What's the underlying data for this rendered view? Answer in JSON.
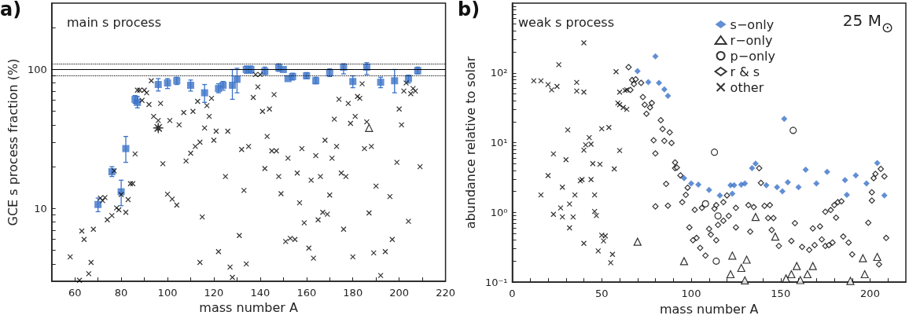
{
  "chart_data": [
    {
      "type": "scatter",
      "xlabel": "mass number A",
      "ylabel": "GCE s process fraction (%)",
      "annotations": [
        "a)",
        "main s process"
      ],
      "xlim": [
        50,
        220
      ],
      "xticks": [
        {
          "value": 50,
          "label": null
        },
        60,
        {
          "value": 70,
          "label": null
        },
        80,
        {
          "value": 90,
          "label": null
        },
        100,
        {
          "value": 110,
          "label": null
        },
        120,
        {
          "value": 130,
          "label": null
        },
        140,
        {
          "value": 150,
          "label": null
        },
        160,
        {
          "value": 170,
          "label": null
        },
        180,
        {
          "value": 190,
          "label": null
        },
        200,
        {
          "value": 210,
          "label": null
        },
        220
      ],
      "ylim": [
        3,
        300
      ],
      "yticks": [
        {
          "value": 4,
          "label": null
        },
        {
          "value": 5,
          "label": null
        },
        {
          "value": 6,
          "label": null
        },
        {
          "value": 7,
          "label": null
        },
        {
          "value": 8,
          "label": null
        },
        {
          "value": 9,
          "label": null
        },
        10,
        {
          "value": 20,
          "label": null
        },
        {
          "value": 30,
          "label": null
        },
        {
          "value": 40,
          "label": null
        },
        {
          "value": 50,
          "label": null
        },
        {
          "value": 60,
          "label": null
        },
        {
          "value": 70,
          "label": null
        },
        {
          "value": 80,
          "label": null
        },
        {
          "value": 90,
          "label": null
        },
        100,
        {
          "value": 200,
          "label": null
        }
      ],
      "log": "y",
      "grid": false,
      "legend": false,
      "ref_lines": [
        {
          "axis": "y",
          "value": 100,
          "color": "#000000",
          "line_style": "solid"
        },
        {
          "axis": "y",
          "value": 110,
          "color": "#000000",
          "line_style": "dotted"
        },
        {
          "axis": "y",
          "value": 90,
          "color": "#000000",
          "line_style": "dotted"
        }
      ],
      "series": [
        {
          "color": "#3b73c8",
          "marker": "square",
          "x": [
            70,
            76,
            80,
            82,
            86,
            87,
            96,
            100,
            104,
            110,
            116,
            122,
            124,
            128,
            130,
            134,
            136,
            142,
            148,
            150,
            152,
            154,
            160,
            164,
            170,
            176,
            180,
            186,
            192,
            198,
            204,
            208
          ],
          "values": [
            10.7,
            18.4,
            13.2,
            27,
            61,
            58,
            78,
            80,
            83,
            77,
            68,
            73,
            77,
            77,
            85,
            100,
            100,
            97,
            103,
            100,
            86,
            89,
            90,
            83,
            95,
            104,
            82,
            104,
            81,
            83,
            86,
            98
          ],
          "errors": [
            [
              9.5,
              11.9
            ],
            [
              17,
              20
            ],
            [
              10.5,
              16
            ],
            [
              21.5,
              33
            ],
            [
              57,
              65
            ],
            [
              53,
              64
            ],
            [
              70,
              86
            ],
            [
              73,
              86
            ],
            [
              78,
              88
            ],
            [
              70,
              84
            ],
            [
              58,
              78
            ],
            [
              68,
              79
            ],
            [
              71,
              82
            ],
            [
              61,
              100
            ],
            [
              68,
              102
            ],
            [
              94,
              106
            ],
            [
              94,
              106
            ],
            [
              92,
              104
            ],
            [
              97,
              110
            ],
            null,
            null,
            [
              84,
              94
            ],
            [
              86,
              95
            ],
            [
              79,
              88
            ],
            [
              89,
              101
            ],
            [
              93,
              110
            ],
            [
              74,
              90
            ],
            [
              92,
              112
            ],
            [
              74,
              88
            ],
            [
              68,
              100
            ],
            [
              80,
              91
            ],
            [
              93,
              104
            ]
          ]
        },
        {
          "color": "#000000",
          "marker": "cross",
          "x": [
            58,
            62,
            63,
            64,
            66,
            67,
            68,
            71,
            72,
            73,
            74,
            76,
            77,
            78,
            79,
            80,
            82,
            83,
            84,
            85,
            86,
            87,
            88,
            89,
            90,
            91,
            92,
            93,
            94,
            96,
            97,
            98,
            100,
            101,
            102,
            104,
            105,
            107,
            108,
            110,
            111,
            112,
            113,
            114,
            114,
            115,
            116,
            117,
            118,
            119,
            120,
            121,
            122,
            125,
            126,
            127,
            128,
            131,
            132,
            133,
            134,
            135,
            137,
            138,
            140,
            139,
            141,
            142,
            143,
            144,
            145,
            146,
            147,
            148,
            149,
            151,
            153,
            152,
            155,
            156,
            157,
            158,
            159,
            161,
            162,
            163,
            164,
            165,
            166,
            167,
            168,
            169,
            170,
            171,
            172,
            173,
            174,
            175,
            176,
            177,
            178,
            179,
            180,
            181,
            182,
            183,
            184,
            185,
            186,
            187,
            188,
            189,
            190,
            192,
            194,
            196,
            197,
            199,
            200,
            201,
            202,
            203,
            204,
            205,
            206,
            207,
            209
          ],
          "values": [
            4.5,
            3.05,
            6.9,
            6.0,
            3.4,
            4.1,
            7.1,
            11.9,
            11.4,
            12,
            8.3,
            8.9,
            18.7,
            10.1,
            9.8,
            12.6,
            9.4,
            11.6,
            15.1,
            15.1,
            24.7,
            71,
            71,
            60,
            71,
            68,
            56,
            83,
            46,
            43,
            57,
            21,
            12.7,
            43,
            11.7,
            10.6,
            40,
            49,
            22,
            25,
            50,
            28,
            59,
            30,
            4.1,
            8.7,
            38,
            55,
            46,
            62,
            31,
            36,
            4.9,
            17,
            36,
            3.8,
            3.2,
            6.4,
            26.6,
            13.5,
            4.0,
            28,
            63,
            92,
            92,
            75,
            50,
            19.4,
            33,
            52,
            26,
            66,
            26,
            17,
            12.8,
            5.8,
            6.1,
            23,
            6.0,
            18,
            11,
            27,
            7.9,
            5.2,
            16,
            4.4,
            24,
            8.3,
            17,
            9.4,
            31,
            9.1,
            12.5,
            23,
            44,
            28,
            61,
            18,
            7.1,
            17,
            57,
            41,
            4.5,
            46,
            64,
            62,
            79,
            27,
            42,
            9.3,
            28,
            4.8,
            14.5,
            3.3,
            4.9,
            12.2,
            6.0,
            21.5,
            52,
            40,
            70,
            80,
            8.1,
            67,
            73,
            70,
            20
          ]
        },
        {
          "color": "#000000",
          "marker": "star",
          "x": [
            96
          ],
          "values": [
            38
          ]
        },
        {
          "color": "#000000",
          "marker": "triangle",
          "x": [
            187
          ],
          "values": [
            38
          ]
        }
      ]
    },
    {
      "type": "scatter",
      "xlabel": "mass number A",
      "ylabel": "abundance relative to solar",
      "annotations": [
        "b)",
        "weak s process",
        "25 M$_{⊙}$"
      ],
      "xlim": [
        0,
        220
      ],
      "xticks": [
        0,
        {
          "value": 10,
          "label": null
        },
        {
          "value": 20,
          "label": null
        },
        {
          "value": 30,
          "label": null
        },
        {
          "value": 40,
          "label": null
        },
        50,
        {
          "value": 60,
          "label": null
        },
        {
          "value": 70,
          "label": null
        },
        {
          "value": 80,
          "label": null
        },
        {
          "value": 90,
          "label": null
        },
        100,
        {
          "value": 110,
          "label": null
        },
        {
          "value": 120,
          "label": null
        },
        {
          "value": 130,
          "label": null
        },
        {
          "value": 140,
          "label": null
        },
        150,
        {
          "value": 160,
          "label": null
        },
        {
          "value": 170,
          "label": null
        },
        {
          "value": 180,
          "label": null
        },
        {
          "value": 190,
          "label": null
        },
        200,
        {
          "value": 210,
          "label": null
        }
      ],
      "ylim": [
        0.1,
        1000
      ],
      "yticks": [
        {
          "value": 0.1,
          "label": "10⁻¹"
        },
        {
          "value": 0.2,
          "label": null
        },
        {
          "value": 0.3,
          "label": null
        },
        {
          "value": 0.4,
          "label": null
        },
        {
          "value": 0.5,
          "label": null
        },
        {
          "value": 0.6,
          "label": null
        },
        {
          "value": 0.7,
          "label": null
        },
        {
          "value": 0.8,
          "label": null
        },
        {
          "value": 0.9,
          "label": null
        },
        {
          "value": 1,
          "label": "10⁰"
        },
        {
          "value": 2,
          "label": null
        },
        {
          "value": 3,
          "label": null
        },
        {
          "value": 4,
          "label": null
        },
        {
          "value": 5,
          "label": null
        },
        {
          "value": 6,
          "label": null
        },
        {
          "value": 7,
          "label": null
        },
        {
          "value": 8,
          "label": null
        },
        {
          "value": 9,
          "label": null
        },
        {
          "value": 10,
          "label": "10¹"
        },
        {
          "value": 20,
          "label": null
        },
        {
          "value": 30,
          "label": null
        },
        {
          "value": 40,
          "label": null
        },
        {
          "value": 50,
          "label": null
        },
        {
          "value": 60,
          "label": null
        },
        {
          "value": 70,
          "label": null
        },
        {
          "value": 80,
          "label": null
        },
        {
          "value": 90,
          "label": null
        },
        {
          "value": 100,
          "label": "10²"
        },
        {
          "value": 200,
          "label": null
        },
        {
          "value": 300,
          "label": null
        },
        {
          "value": 400,
          "label": null
        },
        {
          "value": 500,
          "label": null
        },
        {
          "value": 600,
          "label": null
        },
        {
          "value": 700,
          "label": null
        },
        {
          "value": 800,
          "label": null
        },
        {
          "value": 900,
          "label": null
        }
      ],
      "log": "y",
      "grid": false,
      "legend": "top right",
      "series": [
        {
          "name": "s−only",
          "color": "#3b73c8",
          "marker": "diamond",
          "x": [
            70,
            76,
            80,
            82,
            85,
            87,
            96,
            100,
            104,
            110,
            116,
            122,
            123,
            124,
            128,
            130,
            134,
            136,
            142,
            148,
            151,
            152,
            154,
            160,
            164,
            170,
            176,
            186,
            187,
            192,
            198,
            204,
            208
          ],
          "values": [
            106,
            74,
            173,
            72,
            58,
            47,
            3.1,
            2.6,
            2.5,
            2.1,
            1.75,
            2.45,
            1.86,
            2.45,
            2.5,
            2.6,
            4.3,
            5.0,
            2.45,
            2.3,
            2.0,
            22,
            2.7,
            2.3,
            4.1,
            2.6,
            3.8,
            2.9,
            1.78,
            3.4,
            2.6,
            5.1,
            1.75
          ]
        },
        {
          "name": "r−only",
          "color": "#000000",
          "marker": "triangle",
          "x": [
            70,
            96,
            122,
            123,
            128,
            130,
            131,
            136,
            147,
            153,
            156,
            159,
            161,
            165,
            168,
            189,
            196,
            197,
            204
          ],
          "values": [
            0.38,
            0.2,
            0.13,
            0.24,
            0.16,
            0.106,
            0.21,
            0.86,
            0.45,
            0.113,
            0.13,
            0.17,
            0.107,
            0.13,
            0.17,
            0.104,
            0.22,
            0.13,
            0.23
          ]
        },
        {
          "name": "p−only",
          "color": "#000000",
          "marker": "circle",
          "x": [
            108,
            113,
            114,
            115,
            157
          ],
          "values": [
            1.33,
            7.3,
            0.2,
            0.89,
            15
          ]
        },
        {
          "name": "r & s",
          "color": "#000000",
          "marker": "diamond",
          "x": [
            65,
            67,
            68,
            69,
            72,
            66,
            73,
            74,
            75,
            77,
            78,
            79,
            80,
            80,
            83,
            84,
            85,
            86,
            87,
            88,
            89,
            91,
            91,
            92,
            94,
            95,
            97,
            98,
            99,
            101,
            102,
            103,
            105,
            106,
            108,
            110,
            111,
            113,
            114,
            114,
            115,
            118,
            118,
            120,
            121,
            125,
            125,
            132,
            133,
            135,
            138,
            139,
            141,
            143,
            144,
            145,
            146,
            149,
            156,
            158,
            162,
            166,
            168,
            169,
            172,
            173,
            175,
            175,
            177,
            178,
            179,
            180,
            181,
            182,
            184,
            185,
            188,
            190,
            199,
            201,
            201,
            202,
            203,
            205,
            206,
            208,
            209
          ],
          "values": [
            121,
            79,
            69,
            81,
            72,
            57,
            45,
            35,
            26,
            32,
            37,
            10.8,
            7.0,
            1.22,
            21,
            15.7,
            10.6,
            2.56,
            1.25,
            14,
            9.9,
            5.2,
            4.3,
            4.4,
            3.4,
            1.4,
            1.78,
            2.26,
            0.61,
            0.4,
            1.09,
            0.43,
            0.31,
            1.16,
            0.24,
            0.58,
            0.48,
            1.13,
            0.4,
            1.27,
            0.66,
            0.76,
            1.4,
            1.75,
            0.89,
            1.16,
            0.61,
            1.27,
            0.53,
            1.19,
            4.3,
            2.65,
            1.24,
            0.83,
            1.27,
            0.56,
            0.83,
            0.33,
            0.39,
            0.7,
            0.32,
            0.29,
            0.59,
            0.34,
            0.63,
            0.41,
            1.02,
            0.33,
            0.34,
            1.08,
            0.37,
            1.27,
            0.84,
            1.4,
            1.44,
            0.45,
            0.37,
            0.25,
            0.71,
            1.94,
            1.48,
            3.1,
            3.57,
            0.18,
            4.2,
            3.28,
            0.43
          ]
        },
        {
          "name": "other",
          "color": "#000000",
          "marker": "cross",
          "x": [
            12,
            16,
            20,
            22,
            25,
            26,
            23,
            20,
            16,
            23,
            27,
            28,
            28,
            30,
            31,
            32,
            32,
            34,
            35,
            36,
            36,
            38,
            39,
            40,
            40,
            40,
            40,
            41,
            43,
            44,
            44,
            45,
            46,
            46,
            47,
            48,
            49,
            50,
            50,
            51,
            52,
            54,
            55,
            56,
            57,
            58,
            59,
            60,
            60,
            60,
            62,
            63,
            64,
            64
          ],
          "values": [
            77,
            77,
            68,
            57,
            64,
            131,
            6.9,
            3.37,
            1.78,
            0.94,
            1.16,
            0.86,
            2.3,
            5.7,
            15.2,
            0.6,
            1.32,
            0.86,
            1.78,
            73,
            55,
            2.84,
            2.96,
            270,
            53,
            0.36,
            7.8,
            9.3,
            11.8,
            2.96,
            9.5,
            5.0,
            1.03,
            1.78,
            0.9,
            0.28,
            4.9,
            15.8,
            0.47,
            0.39,
            0.46,
            16.5,
            0.19,
            0.25,
            4.2,
            104,
            37,
            35,
            7.7,
            53,
            32,
            56,
            30,
            57
          ]
        }
      ]
    }
  ]
}
